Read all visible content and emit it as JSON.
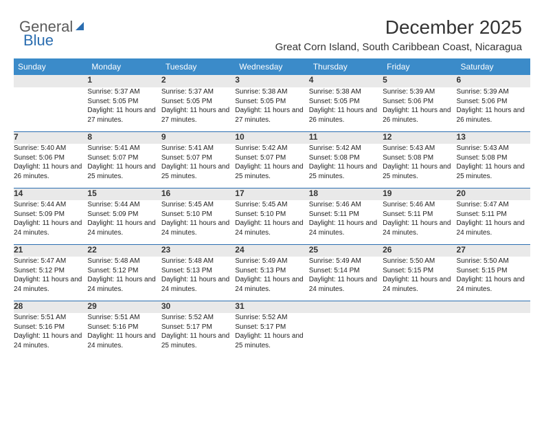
{
  "logo": {
    "part1": "General",
    "part2": "Blue"
  },
  "header": {
    "title": "December 2025",
    "subtitle": "Great Corn Island, South Caribbean Coast, Nicaragua"
  },
  "colors": {
    "header_bg": "#3b8bc9",
    "header_text": "#ffffff",
    "daynum_bg": "#e9e9e9",
    "row_border": "#2a6db0",
    "text": "#222222"
  },
  "weekdays": [
    "Sunday",
    "Monday",
    "Tuesday",
    "Wednesday",
    "Thursday",
    "Friday",
    "Saturday"
  ],
  "weeks": [
    [
      null,
      {
        "n": "1",
        "sr": "Sunrise: 5:37 AM",
        "ss": "Sunset: 5:05 PM",
        "dl": "Daylight: 11 hours and 27 minutes."
      },
      {
        "n": "2",
        "sr": "Sunrise: 5:37 AM",
        "ss": "Sunset: 5:05 PM",
        "dl": "Daylight: 11 hours and 27 minutes."
      },
      {
        "n": "3",
        "sr": "Sunrise: 5:38 AM",
        "ss": "Sunset: 5:05 PM",
        "dl": "Daylight: 11 hours and 27 minutes."
      },
      {
        "n": "4",
        "sr": "Sunrise: 5:38 AM",
        "ss": "Sunset: 5:05 PM",
        "dl": "Daylight: 11 hours and 26 minutes."
      },
      {
        "n": "5",
        "sr": "Sunrise: 5:39 AM",
        "ss": "Sunset: 5:06 PM",
        "dl": "Daylight: 11 hours and 26 minutes."
      },
      {
        "n": "6",
        "sr": "Sunrise: 5:39 AM",
        "ss": "Sunset: 5:06 PM",
        "dl": "Daylight: 11 hours and 26 minutes."
      }
    ],
    [
      {
        "n": "7",
        "sr": "Sunrise: 5:40 AM",
        "ss": "Sunset: 5:06 PM",
        "dl": "Daylight: 11 hours and 26 minutes."
      },
      {
        "n": "8",
        "sr": "Sunrise: 5:41 AM",
        "ss": "Sunset: 5:07 PM",
        "dl": "Daylight: 11 hours and 25 minutes."
      },
      {
        "n": "9",
        "sr": "Sunrise: 5:41 AM",
        "ss": "Sunset: 5:07 PM",
        "dl": "Daylight: 11 hours and 25 minutes."
      },
      {
        "n": "10",
        "sr": "Sunrise: 5:42 AM",
        "ss": "Sunset: 5:07 PM",
        "dl": "Daylight: 11 hours and 25 minutes."
      },
      {
        "n": "11",
        "sr": "Sunrise: 5:42 AM",
        "ss": "Sunset: 5:08 PM",
        "dl": "Daylight: 11 hours and 25 minutes."
      },
      {
        "n": "12",
        "sr": "Sunrise: 5:43 AM",
        "ss": "Sunset: 5:08 PM",
        "dl": "Daylight: 11 hours and 25 minutes."
      },
      {
        "n": "13",
        "sr": "Sunrise: 5:43 AM",
        "ss": "Sunset: 5:08 PM",
        "dl": "Daylight: 11 hours and 25 minutes."
      }
    ],
    [
      {
        "n": "14",
        "sr": "Sunrise: 5:44 AM",
        "ss": "Sunset: 5:09 PM",
        "dl": "Daylight: 11 hours and 24 minutes."
      },
      {
        "n": "15",
        "sr": "Sunrise: 5:44 AM",
        "ss": "Sunset: 5:09 PM",
        "dl": "Daylight: 11 hours and 24 minutes."
      },
      {
        "n": "16",
        "sr": "Sunrise: 5:45 AM",
        "ss": "Sunset: 5:10 PM",
        "dl": "Daylight: 11 hours and 24 minutes."
      },
      {
        "n": "17",
        "sr": "Sunrise: 5:45 AM",
        "ss": "Sunset: 5:10 PM",
        "dl": "Daylight: 11 hours and 24 minutes."
      },
      {
        "n": "18",
        "sr": "Sunrise: 5:46 AM",
        "ss": "Sunset: 5:11 PM",
        "dl": "Daylight: 11 hours and 24 minutes."
      },
      {
        "n": "19",
        "sr": "Sunrise: 5:46 AM",
        "ss": "Sunset: 5:11 PM",
        "dl": "Daylight: 11 hours and 24 minutes."
      },
      {
        "n": "20",
        "sr": "Sunrise: 5:47 AM",
        "ss": "Sunset: 5:11 PM",
        "dl": "Daylight: 11 hours and 24 minutes."
      }
    ],
    [
      {
        "n": "21",
        "sr": "Sunrise: 5:47 AM",
        "ss": "Sunset: 5:12 PM",
        "dl": "Daylight: 11 hours and 24 minutes."
      },
      {
        "n": "22",
        "sr": "Sunrise: 5:48 AM",
        "ss": "Sunset: 5:12 PM",
        "dl": "Daylight: 11 hours and 24 minutes."
      },
      {
        "n": "23",
        "sr": "Sunrise: 5:48 AM",
        "ss": "Sunset: 5:13 PM",
        "dl": "Daylight: 11 hours and 24 minutes."
      },
      {
        "n": "24",
        "sr": "Sunrise: 5:49 AM",
        "ss": "Sunset: 5:13 PM",
        "dl": "Daylight: 11 hours and 24 minutes."
      },
      {
        "n": "25",
        "sr": "Sunrise: 5:49 AM",
        "ss": "Sunset: 5:14 PM",
        "dl": "Daylight: 11 hours and 24 minutes."
      },
      {
        "n": "26",
        "sr": "Sunrise: 5:50 AM",
        "ss": "Sunset: 5:15 PM",
        "dl": "Daylight: 11 hours and 24 minutes."
      },
      {
        "n": "27",
        "sr": "Sunrise: 5:50 AM",
        "ss": "Sunset: 5:15 PM",
        "dl": "Daylight: 11 hours and 24 minutes."
      }
    ],
    [
      {
        "n": "28",
        "sr": "Sunrise: 5:51 AM",
        "ss": "Sunset: 5:16 PM",
        "dl": "Daylight: 11 hours and 24 minutes."
      },
      {
        "n": "29",
        "sr": "Sunrise: 5:51 AM",
        "ss": "Sunset: 5:16 PM",
        "dl": "Daylight: 11 hours and 24 minutes."
      },
      {
        "n": "30",
        "sr": "Sunrise: 5:52 AM",
        "ss": "Sunset: 5:17 PM",
        "dl": "Daylight: 11 hours and 25 minutes."
      },
      {
        "n": "31",
        "sr": "Sunrise: 5:52 AM",
        "ss": "Sunset: 5:17 PM",
        "dl": "Daylight: 11 hours and 25 minutes."
      },
      null,
      null,
      null
    ]
  ]
}
